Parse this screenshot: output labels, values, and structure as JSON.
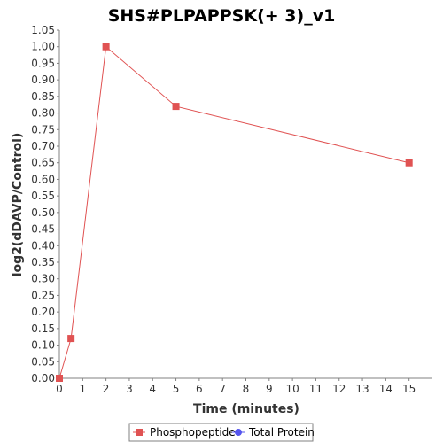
{
  "chart_data": {
    "type": "line",
    "title": "SHS#PLPAPPSK(+ 3)_v1",
    "xlabel": "Time (minutes)",
    "ylabel": "log2(dDAVP/Control)",
    "xlim": [
      0,
      16
    ],
    "ylim": [
      0,
      1.05
    ],
    "x_ticks": [
      0,
      1,
      2,
      3,
      4,
      5,
      6,
      7,
      8,
      9,
      10,
      11,
      12,
      13,
      14,
      15
    ],
    "y_ticks": [
      0.0,
      0.05,
      0.1,
      0.15,
      0.2,
      0.25,
      0.3,
      0.35,
      0.4,
      0.45,
      0.5,
      0.55,
      0.6,
      0.65,
      0.7,
      0.75,
      0.8,
      0.85,
      0.9,
      0.95,
      1.0,
      1.05
    ],
    "grid": false,
    "legend_position": "bottom-center",
    "series": [
      {
        "name": "Phosphopeptide",
        "color": "#e05252",
        "marker": "square",
        "x": [
          0,
          0.5,
          2,
          5,
          15
        ],
        "y": [
          0.0,
          0.12,
          1.0,
          0.82,
          0.65
        ]
      },
      {
        "name": "Total Protein",
        "color": "#5555ee",
        "marker": "circle",
        "x": [],
        "y": []
      }
    ]
  }
}
